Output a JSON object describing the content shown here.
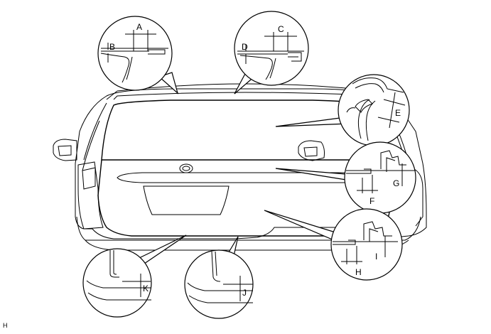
{
  "labels": {
    "A": "A",
    "B": "B",
    "C": "C",
    "D": "D",
    "E": "E",
    "F": "F",
    "G": "G",
    "H": "H",
    "I": "I",
    "J": "J",
    "K": "K"
  },
  "figure_code": "H"
}
